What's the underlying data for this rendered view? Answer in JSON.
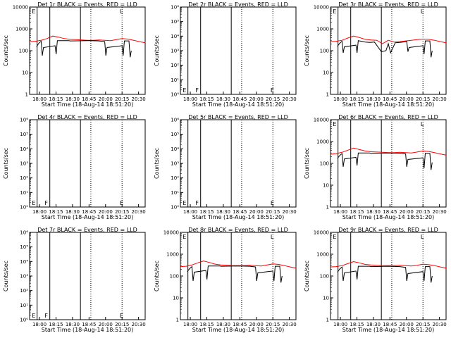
{
  "legend_colors": {
    "events": "#000000",
    "lld": "#ff0000"
  },
  "chart_data": [
    {
      "type": "line",
      "title": "Det 1r BLACK = Events, RED = LLD",
      "xlabel": "Start Time (18-Aug-14 18:51:20)",
      "ylabel": "Counts/sec",
      "yscale": "log",
      "ylim": [
        1,
        10000
      ],
      "y_ticks": [
        "1",
        "10",
        "100",
        "1000",
        "10000"
      ],
      "x_ticks": [
        "18:00",
        "18:15",
        "18:30",
        "18:45",
        "20:00",
        "20:15",
        "20:30"
      ],
      "series": [
        {
          "color": "#ff0000",
          "x": [
            0,
            0.05,
            0.1,
            0.15,
            0.2,
            0.25,
            0.3,
            0.35,
            0.4,
            0.45,
            0.5,
            0.55,
            0.6,
            0.65,
            0.7,
            0.75,
            0.8,
            0.85,
            0.9,
            0.95,
            1.0
          ],
          "values": [
            260,
            270,
            300,
            360,
            470,
            420,
            360,
            330,
            320,
            310,
            300,
            300,
            310,
            300,
            290,
            320,
            360,
            340,
            300,
            260,
            230
          ]
        },
        {
          "color": "#000000",
          "x": [
            0.06,
            0.08,
            0.1,
            0.11,
            0.12,
            0.22,
            0.23,
            0.24,
            0.34,
            0.35,
            0.36,
            0.5,
            0.6,
            0.65,
            0.66,
            0.67,
            0.8,
            0.81,
            0.82,
            0.86,
            0.87,
            0.88
          ],
          "values": [
            150,
            220,
            270,
            60,
            140,
            170,
            70,
            290,
            290,
            280,
            280,
            290,
            280,
            260,
            60,
            140,
            170,
            60,
            280,
            280,
            50,
            100
          ]
        }
      ],
      "markers": [
        "E"
      ],
      "nontick_labels": [
        "L",
        "E"
      ]
    },
    {
      "type": "line",
      "title": "Det 2r BLACK = Events, RED = LLD",
      "xlabel": "Start Time (18-Aug-14 18:51:20)",
      "ylabel": "Counts/sec",
      "yscale": "log",
      "ylim": [
        1,
        1000000
      ],
      "y_ticks": [
        "10⁰",
        "10¹",
        "10²",
        "10³",
        "10⁴",
        "10⁵",
        "10⁶"
      ],
      "x_ticks": [
        "18:00",
        "18:15",
        "18:30",
        "18:45",
        "20:00",
        "20:15",
        "20:30"
      ],
      "series": [],
      "markers": [
        "E",
        "F",
        "E"
      ],
      "nontick_labels": []
    },
    {
      "type": "line",
      "title": "Det 3r BLACK = Events, RED = LLD",
      "xlabel": "Start Time (18-Aug-14 18:51:20)",
      "ylabel": "Counts/sec",
      "yscale": "log",
      "ylim": [
        1,
        10000
      ],
      "y_ticks": [
        "1",
        "10",
        "100",
        "1000",
        "10000"
      ],
      "x_ticks": [
        "18:00",
        "18:15",
        "18:30",
        "18:45",
        "20:00",
        "20:15",
        "20:30"
      ],
      "series": [
        {
          "color": "#ff0000",
          "x": [
            0,
            0.05,
            0.1,
            0.15,
            0.2,
            0.25,
            0.3,
            0.35,
            0.4,
            0.45,
            0.5,
            0.55,
            0.6,
            0.65,
            0.7,
            0.75,
            0.8,
            0.85,
            0.9,
            0.95,
            1.0
          ],
          "values": [
            260,
            270,
            300,
            380,
            470,
            400,
            330,
            310,
            300,
            210,
            300,
            250,
            260,
            280,
            300,
            320,
            340,
            330,
            300,
            260,
            230
          ]
        },
        {
          "color": "#000000",
          "x": [
            0.06,
            0.08,
            0.1,
            0.11,
            0.12,
            0.22,
            0.23,
            0.24,
            0.3,
            0.34,
            0.38,
            0.44,
            0.48,
            0.5,
            0.52,
            0.56,
            0.6,
            0.66,
            0.67,
            0.68,
            0.8,
            0.81,
            0.82,
            0.86,
            0.87,
            0.88
          ],
          "values": [
            160,
            220,
            270,
            80,
            150,
            180,
            80,
            290,
            250,
            240,
            250,
            90,
            100,
            210,
            80,
            230,
            240,
            260,
            90,
            140,
            170,
            70,
            280,
            280,
            50,
            100
          ]
        }
      ],
      "markers": [
        "E"
      ],
      "nontick_labels": [
        "L",
        "E"
      ]
    },
    {
      "type": "line",
      "title": "Det 4r BLACK = Events, RED = LLD",
      "xlabel": "Start Time (18-Aug-14 18:51:20)",
      "ylabel": "Counts/sec",
      "yscale": "log",
      "ylim": [
        1,
        1000000
      ],
      "y_ticks": [
        "10⁰",
        "10¹",
        "10²",
        "10³",
        "10⁴",
        "10⁵",
        "10⁶"
      ],
      "x_ticks": [
        "18:00",
        "18:15",
        "18:30",
        "18:45",
        "20:00",
        "20:15",
        "20:30"
      ],
      "series": [],
      "markers": [
        "E",
        "F",
        "E"
      ],
      "nontick_labels": []
    },
    {
      "type": "line",
      "title": "Det 5r BLACK = Events, RED = LLD",
      "xlabel": "Start Time (18-Aug-14 18:51:20)",
      "ylabel": "Counts/sec",
      "yscale": "log",
      "ylim": [
        1,
        1000000
      ],
      "y_ticks": [
        "10⁰",
        "10¹",
        "10²",
        "10³",
        "10⁴",
        "10⁵",
        "10⁶"
      ],
      "x_ticks": [
        "18:00",
        "18:15",
        "18:30",
        "18:45",
        "20:00",
        "20:15",
        "20:30"
      ],
      "series": [],
      "markers": [
        "E",
        "F",
        "E"
      ],
      "nontick_labels": []
    },
    {
      "type": "line",
      "title": "Det 6r BLACK = Events, RED = LLD",
      "xlabel": "Start Time (18-Aug-14 18:51:20)",
      "ylabel": "Counts/sec",
      "yscale": "log",
      "ylim": [
        1,
        10000
      ],
      "y_ticks": [
        "1",
        "10",
        "100",
        "1000",
        "10000"
      ],
      "x_ticks": [
        "18:00",
        "18:15",
        "18:30",
        "18:45",
        "20:00",
        "20:15",
        "20:30"
      ],
      "series": [
        {
          "color": "#ff0000",
          "x": [
            0,
            0.05,
            0.1,
            0.15,
            0.2,
            0.25,
            0.3,
            0.35,
            0.4,
            0.45,
            0.5,
            0.55,
            0.6,
            0.65,
            0.7,
            0.75,
            0.8,
            0.85,
            0.9,
            0.95,
            1.0
          ],
          "values": [
            260,
            280,
            320,
            400,
            500,
            430,
            370,
            340,
            330,
            320,
            310,
            310,
            320,
            310,
            300,
            330,
            370,
            350,
            310,
            270,
            240
          ]
        },
        {
          "color": "#000000",
          "x": [
            0.06,
            0.08,
            0.1,
            0.11,
            0.12,
            0.22,
            0.23,
            0.24,
            0.34,
            0.35,
            0.36,
            0.5,
            0.6,
            0.65,
            0.66,
            0.67,
            0.8,
            0.81,
            0.82,
            0.86,
            0.87,
            0.88
          ],
          "values": [
            170,
            230,
            280,
            70,
            160,
            190,
            80,
            300,
            300,
            290,
            290,
            300,
            290,
            270,
            70,
            150,
            180,
            60,
            290,
            290,
            50,
            110
          ]
        }
      ],
      "markers": [
        "E"
      ],
      "nontick_labels": [
        "L",
        "E"
      ]
    },
    {
      "type": "line",
      "title": "Det 7r BLACK = Events, RED = LLD",
      "xlabel": "Start Time (18-Aug-14 18:51:20)",
      "ylabel": "Counts/sec",
      "yscale": "log",
      "ylim": [
        1,
        1000000
      ],
      "y_ticks": [
        "10⁰",
        "10¹",
        "10²",
        "10³",
        "10⁴",
        "10⁵",
        "10⁶"
      ],
      "x_ticks": [
        "18:00",
        "18:15",
        "18:30",
        "18:45",
        "20:00",
        "20:15",
        "20:30"
      ],
      "series": [],
      "markers": [
        "E",
        "F",
        "E"
      ],
      "nontick_labels": []
    },
    {
      "type": "line",
      "title": "Det 8r BLACK = Events, RED = LLD",
      "xlabel": "Start Time (18-Aug-14 18:51:20)",
      "ylabel": "Counts/sec",
      "yscale": "log",
      "ylim": [
        1,
        10000
      ],
      "y_ticks": [
        "1",
        "10",
        "100",
        "1000",
        "10000"
      ],
      "x_ticks": [
        "18:00",
        "18:15",
        "18:30",
        "18:45",
        "20:00",
        "20:15",
        "20:30"
      ],
      "series": [
        {
          "color": "#ff0000",
          "x": [
            0,
            0.05,
            0.1,
            0.15,
            0.2,
            0.25,
            0.3,
            0.35,
            0.4,
            0.45,
            0.5,
            0.55,
            0.6,
            0.65,
            0.7,
            0.75,
            0.8,
            0.85,
            0.9,
            0.95,
            1.0
          ],
          "values": [
            270,
            280,
            320,
            400,
            490,
            420,
            350,
            320,
            310,
            300,
            300,
            300,
            310,
            300,
            290,
            320,
            360,
            340,
            300,
            260,
            230
          ]
        },
        {
          "color": "#000000",
          "x": [
            0.06,
            0.08,
            0.1,
            0.11,
            0.12,
            0.22,
            0.23,
            0.24,
            0.34,
            0.35,
            0.36,
            0.5,
            0.6,
            0.65,
            0.66,
            0.67,
            0.8,
            0.81,
            0.82,
            0.86,
            0.87,
            0.88
          ],
          "values": [
            160,
            220,
            270,
            60,
            150,
            180,
            70,
            290,
            290,
            280,
            280,
            290,
            280,
            260,
            60,
            140,
            170,
            60,
            280,
            280,
            50,
            100
          ]
        }
      ],
      "markers": [
        "E"
      ],
      "nontick_labels": [
        "L",
        "E"
      ]
    },
    {
      "type": "line",
      "title": "Det 9r BLACK = Events, RED = LLD",
      "xlabel": "Start Time (18-Aug-14 18:51:20)",
      "ylabel": "Counts/sec",
      "yscale": "log",
      "ylim": [
        1,
        10000
      ],
      "y_ticks": [
        "1",
        "10",
        "100",
        "1000",
        "10000"
      ],
      "x_ticks": [
        "18:00",
        "18:15",
        "18:30",
        "18:45",
        "20:00",
        "20:15",
        "20:30"
      ],
      "series": [
        {
          "color": "#ff0000",
          "x": [
            0,
            0.05,
            0.1,
            0.15,
            0.2,
            0.25,
            0.3,
            0.35,
            0.4,
            0.45,
            0.5,
            0.55,
            0.6,
            0.65,
            0.7,
            0.75,
            0.8,
            0.85,
            0.9,
            0.95,
            1.0
          ],
          "values": [
            260,
            270,
            300,
            370,
            460,
            400,
            340,
            320,
            310,
            300,
            300,
            300,
            310,
            300,
            290,
            310,
            350,
            330,
            300,
            260,
            230
          ]
        },
        {
          "color": "#000000",
          "x": [
            0.06,
            0.08,
            0.1,
            0.11,
            0.12,
            0.22,
            0.23,
            0.24,
            0.34,
            0.35,
            0.36,
            0.5,
            0.6,
            0.65,
            0.66,
            0.67,
            0.8,
            0.81,
            0.82,
            0.86,
            0.87,
            0.88
          ],
          "values": [
            150,
            210,
            260,
            60,
            140,
            170,
            70,
            280,
            280,
            270,
            270,
            280,
            270,
            250,
            60,
            130,
            160,
            60,
            270,
            270,
            50,
            100
          ]
        }
      ],
      "markers": [
        "E"
      ],
      "nontick_labels": [
        "L",
        "E"
      ]
    }
  ]
}
